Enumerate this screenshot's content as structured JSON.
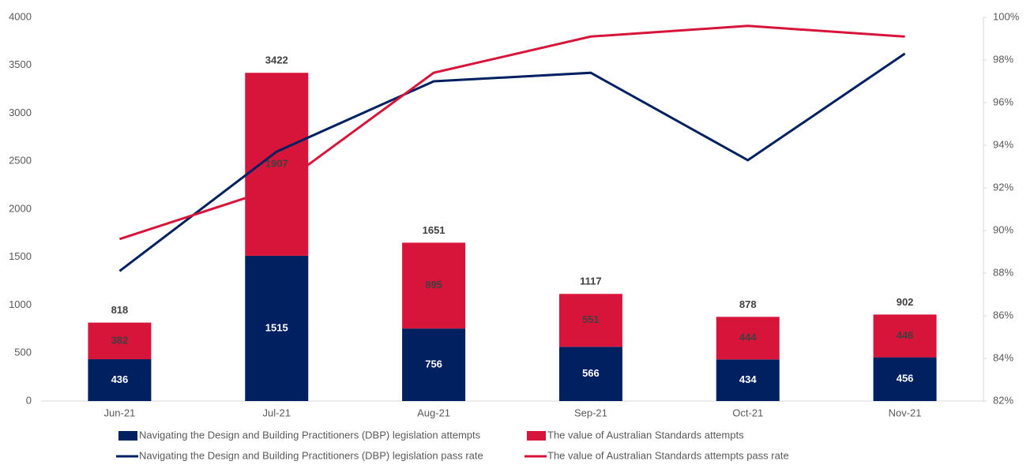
{
  "chart_data": {
    "type": "bar-line",
    "categories": [
      "Jun-21",
      "Jul-21",
      "Aug-21",
      "Sep-21",
      "Oct-21",
      "Nov-21"
    ],
    "series": [
      {
        "name": "Navigating the Design and Building Practitioners (DBP) legislation attempts",
        "type": "bar",
        "color": "#002060",
        "label_color": "#ffffff",
        "values": [
          436,
          1515,
          756,
          566,
          434,
          456
        ]
      },
      {
        "name": "The value of Australian Standards attempts",
        "type": "bar",
        "color": "#d7153a",
        "label_color": "#404040",
        "values": [
          382,
          1907,
          895,
          551,
          444,
          446
        ]
      },
      {
        "name": "Navigating the Design and Building Practitioners (DBP) legislation pass rate",
        "type": "line",
        "axis": "y2",
        "color": "#002060",
        "values": [
          88.1,
          93.7,
          97.0,
          97.4,
          93.3,
          98.3
        ]
      },
      {
        "name": "The value of Australian Standards attempts pass rate",
        "type": "line",
        "axis": "y2",
        "color": "#d7153a",
        "values": [
          89.6,
          92.0,
          97.4,
          99.1,
          99.6,
          99.1
        ]
      }
    ],
    "totals": [
      818,
      3422,
      1651,
      1117,
      878,
      902
    ],
    "ylim": [
      0,
      4000
    ],
    "yticks": [
      0,
      500,
      1000,
      1500,
      2000,
      2500,
      3000,
      3500,
      4000
    ],
    "y2lim": [
      82,
      100
    ],
    "y2ticks": [
      {
        "value": 82,
        "label": "82%"
      },
      {
        "value": 84,
        "label": "84%"
      },
      {
        "value": 86,
        "label": "86%"
      },
      {
        "value": 88,
        "label": "88%"
      },
      {
        "value": 90,
        "label": "90%"
      },
      {
        "value": 92,
        "label": "92%"
      },
      {
        "value": 94,
        "label": "94%"
      },
      {
        "value": 96,
        "label": "96%"
      },
      {
        "value": 98,
        "label": "98%"
      },
      {
        "value": 100,
        "label": "100%"
      }
    ],
    "grid": false,
    "legend": "bottom"
  }
}
